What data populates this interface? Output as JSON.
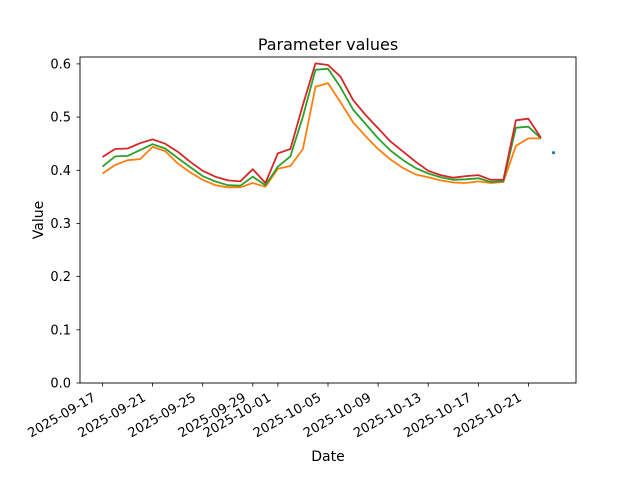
{
  "chart_data": {
    "type": "line",
    "title": "Parameter values",
    "xlabel": "Date",
    "ylabel": "Value",
    "grid": false,
    "legend_visible": false,
    "background": "#ffffff",
    "ylim": [
      0,
      0.613
    ],
    "y_ticks": [
      0.0,
      0.1,
      0.2,
      0.3,
      0.4,
      0.5,
      0.6
    ],
    "x_ticks": [
      "2025-09-17",
      "2025-09-21",
      "2025-09-25",
      "2025-09-29",
      "2025-10-01",
      "2025-10-05",
      "2025-10-09",
      "2025-10-13",
      "2025-10-17",
      "2025-10-21"
    ],
    "x_tick_rotation_deg": 30,
    "x": [
      "2025-09-17",
      "2025-09-18",
      "2025-09-19",
      "2025-09-20",
      "2025-09-21",
      "2025-09-22",
      "2025-09-23",
      "2025-09-24",
      "2025-09-25",
      "2025-09-26",
      "2025-09-27",
      "2025-09-28",
      "2025-09-29",
      "2025-09-30",
      "2025-10-01",
      "2025-10-02",
      "2025-10-03",
      "2025-10-04",
      "2025-10-05",
      "2025-10-06",
      "2025-10-07",
      "2025-10-08",
      "2025-10-09",
      "2025-10-10",
      "2025-10-11",
      "2025-10-12",
      "2025-10-13",
      "2025-10-14",
      "2025-10-15",
      "2025-10-16",
      "2025-10-17",
      "2025-10-18",
      "2025-10-19",
      "2025-10-20",
      "2025-10-21",
      "2025-10-22"
    ],
    "series": [
      {
        "name": "orange-line",
        "color": "#ff7f0e",
        "values": [
          0.394,
          0.41,
          0.419,
          0.421,
          0.444,
          0.436,
          0.413,
          0.396,
          0.382,
          0.372,
          0.368,
          0.368,
          0.376,
          0.369,
          0.403,
          0.408,
          0.44,
          0.557,
          0.564,
          0.528,
          0.49,
          0.464,
          0.44,
          0.42,
          0.404,
          0.392,
          0.387,
          0.381,
          0.377,
          0.376,
          0.379,
          0.376,
          0.378,
          0.446,
          0.46,
          0.46
        ]
      },
      {
        "name": "green-line",
        "color": "#2ca02c",
        "values": [
          0.407,
          0.426,
          0.427,
          0.438,
          0.449,
          0.441,
          0.423,
          0.406,
          0.389,
          0.379,
          0.372,
          0.371,
          0.388,
          0.372,
          0.407,
          0.426,
          0.501,
          0.589,
          0.591,
          0.556,
          0.514,
          0.487,
          0.46,
          0.437,
          0.419,
          0.404,
          0.394,
          0.387,
          0.382,
          0.383,
          0.385,
          0.378,
          0.379,
          0.48,
          0.482,
          0.46
        ]
      },
      {
        "name": "red-line",
        "color": "#d62728",
        "values": [
          0.425,
          0.44,
          0.441,
          0.451,
          0.458,
          0.45,
          0.435,
          0.416,
          0.399,
          0.388,
          0.381,
          0.379,
          0.402,
          0.376,
          0.432,
          0.44,
          0.523,
          0.601,
          0.598,
          0.576,
          0.532,
          0.504,
          0.479,
          0.454,
          0.435,
          0.416,
          0.399,
          0.391,
          0.386,
          0.389,
          0.391,
          0.382,
          0.382,
          0.494,
          0.497,
          0.461
        ]
      }
    ],
    "scatter_points": [
      {
        "name": "blue-dot",
        "color": "#1f77b4",
        "x": "2025-10-23",
        "value": 0.433
      }
    ]
  }
}
